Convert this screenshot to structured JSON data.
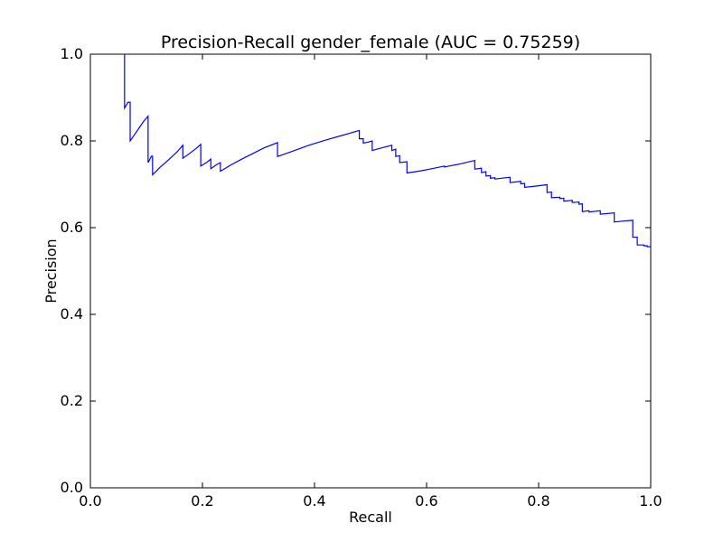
{
  "chart_data": {
    "type": "line",
    "title": "Precision-Recall gender_female (AUC = 0.75259)",
    "xlabel": "Recall",
    "ylabel": "Precision",
    "xlim": [
      0.0,
      1.0
    ],
    "ylim": [
      0.0,
      1.0
    ],
    "xticks": [
      0.0,
      0.2,
      0.4,
      0.6,
      0.8,
      1.0
    ],
    "xtick_labels": [
      "0.0",
      "0.2",
      "0.4",
      "0.6",
      "0.8",
      "1.0"
    ],
    "yticks": [
      0.0,
      0.2,
      0.4,
      0.6,
      0.8,
      1.0
    ],
    "ytick_labels": [
      "0.0",
      "0.2",
      "0.4",
      "0.6",
      "0.8",
      "1.0"
    ],
    "grid": false,
    "series": [
      {
        "color": "#0000ff",
        "points": [
          [
            0.061,
            1.0
          ],
          [
            0.061,
            0.876
          ],
          [
            0.067,
            0.889
          ],
          [
            0.071,
            0.889
          ],
          [
            0.071,
            0.8
          ],
          [
            0.079,
            0.815
          ],
          [
            0.087,
            0.83
          ],
          [
            0.095,
            0.845
          ],
          [
            0.103,
            0.857
          ],
          [
            0.103,
            0.75
          ],
          [
            0.109,
            0.765
          ],
          [
            0.111,
            0.765
          ],
          [
            0.111,
            0.722
          ],
          [
            0.125,
            0.74
          ],
          [
            0.14,
            0.757
          ],
          [
            0.155,
            0.775
          ],
          [
            0.165,
            0.79
          ],
          [
            0.165,
            0.76
          ],
          [
            0.178,
            0.772
          ],
          [
            0.19,
            0.784
          ],
          [
            0.197,
            0.792
          ],
          [
            0.197,
            0.742
          ],
          [
            0.207,
            0.75
          ],
          [
            0.215,
            0.758
          ],
          [
            0.215,
            0.736
          ],
          [
            0.225,
            0.745
          ],
          [
            0.232,
            0.75
          ],
          [
            0.232,
            0.73
          ],
          [
            0.25,
            0.744
          ],
          [
            0.27,
            0.758
          ],
          [
            0.29,
            0.771
          ],
          [
            0.31,
            0.784
          ],
          [
            0.334,
            0.796
          ],
          [
            0.334,
            0.764
          ],
          [
            0.36,
            0.776
          ],
          [
            0.39,
            0.79
          ],
          [
            0.42,
            0.802
          ],
          [
            0.45,
            0.813
          ],
          [
            0.48,
            0.824
          ],
          [
            0.48,
            0.805
          ],
          [
            0.487,
            0.805
          ],
          [
            0.487,
            0.795
          ],
          [
            0.495,
            0.797
          ],
          [
            0.503,
            0.8
          ],
          [
            0.503,
            0.778
          ],
          [
            0.52,
            0.784
          ],
          [
            0.538,
            0.79
          ],
          [
            0.538,
            0.778
          ],
          [
            0.545,
            0.781
          ],
          [
            0.545,
            0.764
          ],
          [
            0.552,
            0.766
          ],
          [
            0.552,
            0.75
          ],
          [
            0.565,
            0.752
          ],
          [
            0.565,
            0.726
          ],
          [
            0.59,
            0.731
          ],
          [
            0.61,
            0.736
          ],
          [
            0.632,
            0.742
          ],
          [
            0.632,
            0.74
          ],
          [
            0.66,
            0.747
          ],
          [
            0.686,
            0.755
          ],
          [
            0.686,
            0.735
          ],
          [
            0.698,
            0.737
          ],
          [
            0.698,
            0.727
          ],
          [
            0.706,
            0.729
          ],
          [
            0.706,
            0.719
          ],
          [
            0.714,
            0.72
          ],
          [
            0.714,
            0.714
          ],
          [
            0.722,
            0.715
          ],
          [
            0.722,
            0.712
          ],
          [
            0.74,
            0.715
          ],
          [
            0.749,
            0.716
          ],
          [
            0.749,
            0.704
          ],
          [
            0.763,
            0.706
          ],
          [
            0.768,
            0.707
          ],
          [
            0.768,
            0.701
          ],
          [
            0.775,
            0.702
          ],
          [
            0.775,
            0.693
          ],
          [
            0.79,
            0.695
          ],
          [
            0.815,
            0.699
          ],
          [
            0.815,
            0.681
          ],
          [
            0.823,
            0.682
          ],
          [
            0.823,
            0.669
          ],
          [
            0.838,
            0.67
          ],
          [
            0.838,
            0.667
          ],
          [
            0.845,
            0.668
          ],
          [
            0.845,
            0.661
          ],
          [
            0.86,
            0.663
          ],
          [
            0.86,
            0.658
          ],
          [
            0.872,
            0.659
          ],
          [
            0.872,
            0.654
          ],
          [
            0.878,
            0.655
          ],
          [
            0.878,
            0.637
          ],
          [
            0.89,
            0.639
          ],
          [
            0.89,
            0.636
          ],
          [
            0.91,
            0.639
          ],
          [
            0.91,
            0.631
          ],
          [
            0.935,
            0.634
          ],
          [
            0.935,
            0.613
          ],
          [
            0.95,
            0.615
          ],
          [
            0.968,
            0.617
          ],
          [
            0.968,
            0.578
          ],
          [
            0.976,
            0.578
          ],
          [
            0.976,
            0.56
          ],
          [
            0.988,
            0.56
          ],
          [
            0.988,
            0.558
          ],
          [
            0.994,
            0.558
          ],
          [
            0.994,
            0.556
          ],
          [
            1.0,
            0.556
          ]
        ]
      }
    ]
  }
}
